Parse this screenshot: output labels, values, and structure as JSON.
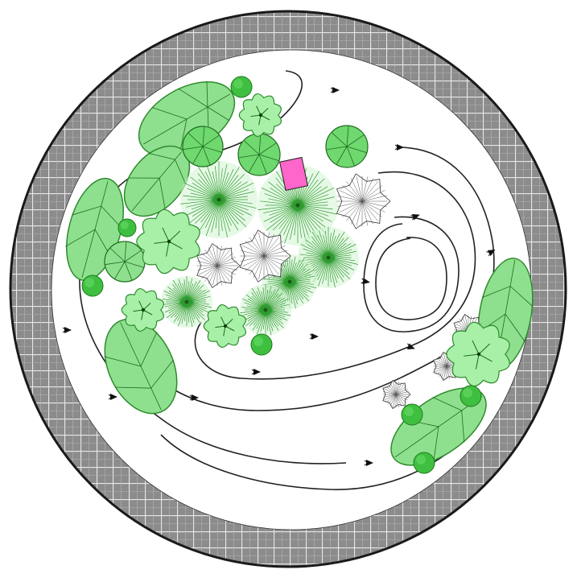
{
  "colors": {
    "page_background": "#ffffff",
    "border_ring": "#8c8c8c",
    "grid_lines": "#eeeeee",
    "outline": "#1a1a1a",
    "lawn": "#ffffff",
    "shrub_fill": "#8ee08e",
    "shrub_stroke": "#2e8b2e",
    "tree_fill": "#6fd86f",
    "tree_light_fill": "#a8f0a8",
    "small_tree_fill": "#3fbf3f",
    "conifer_stroke": "#2f9b2f",
    "white_plant_stroke": "#333333",
    "marker": "#ff66cc",
    "path_line": "#222222"
  },
  "icons": [
    "broadleaf-shrub-icon",
    "round-tree-icon",
    "lobed-tree-icon",
    "conifer-icon",
    "white-flower-icon",
    "arrow-marker-icon",
    "pink-marker-icon"
  ]
}
